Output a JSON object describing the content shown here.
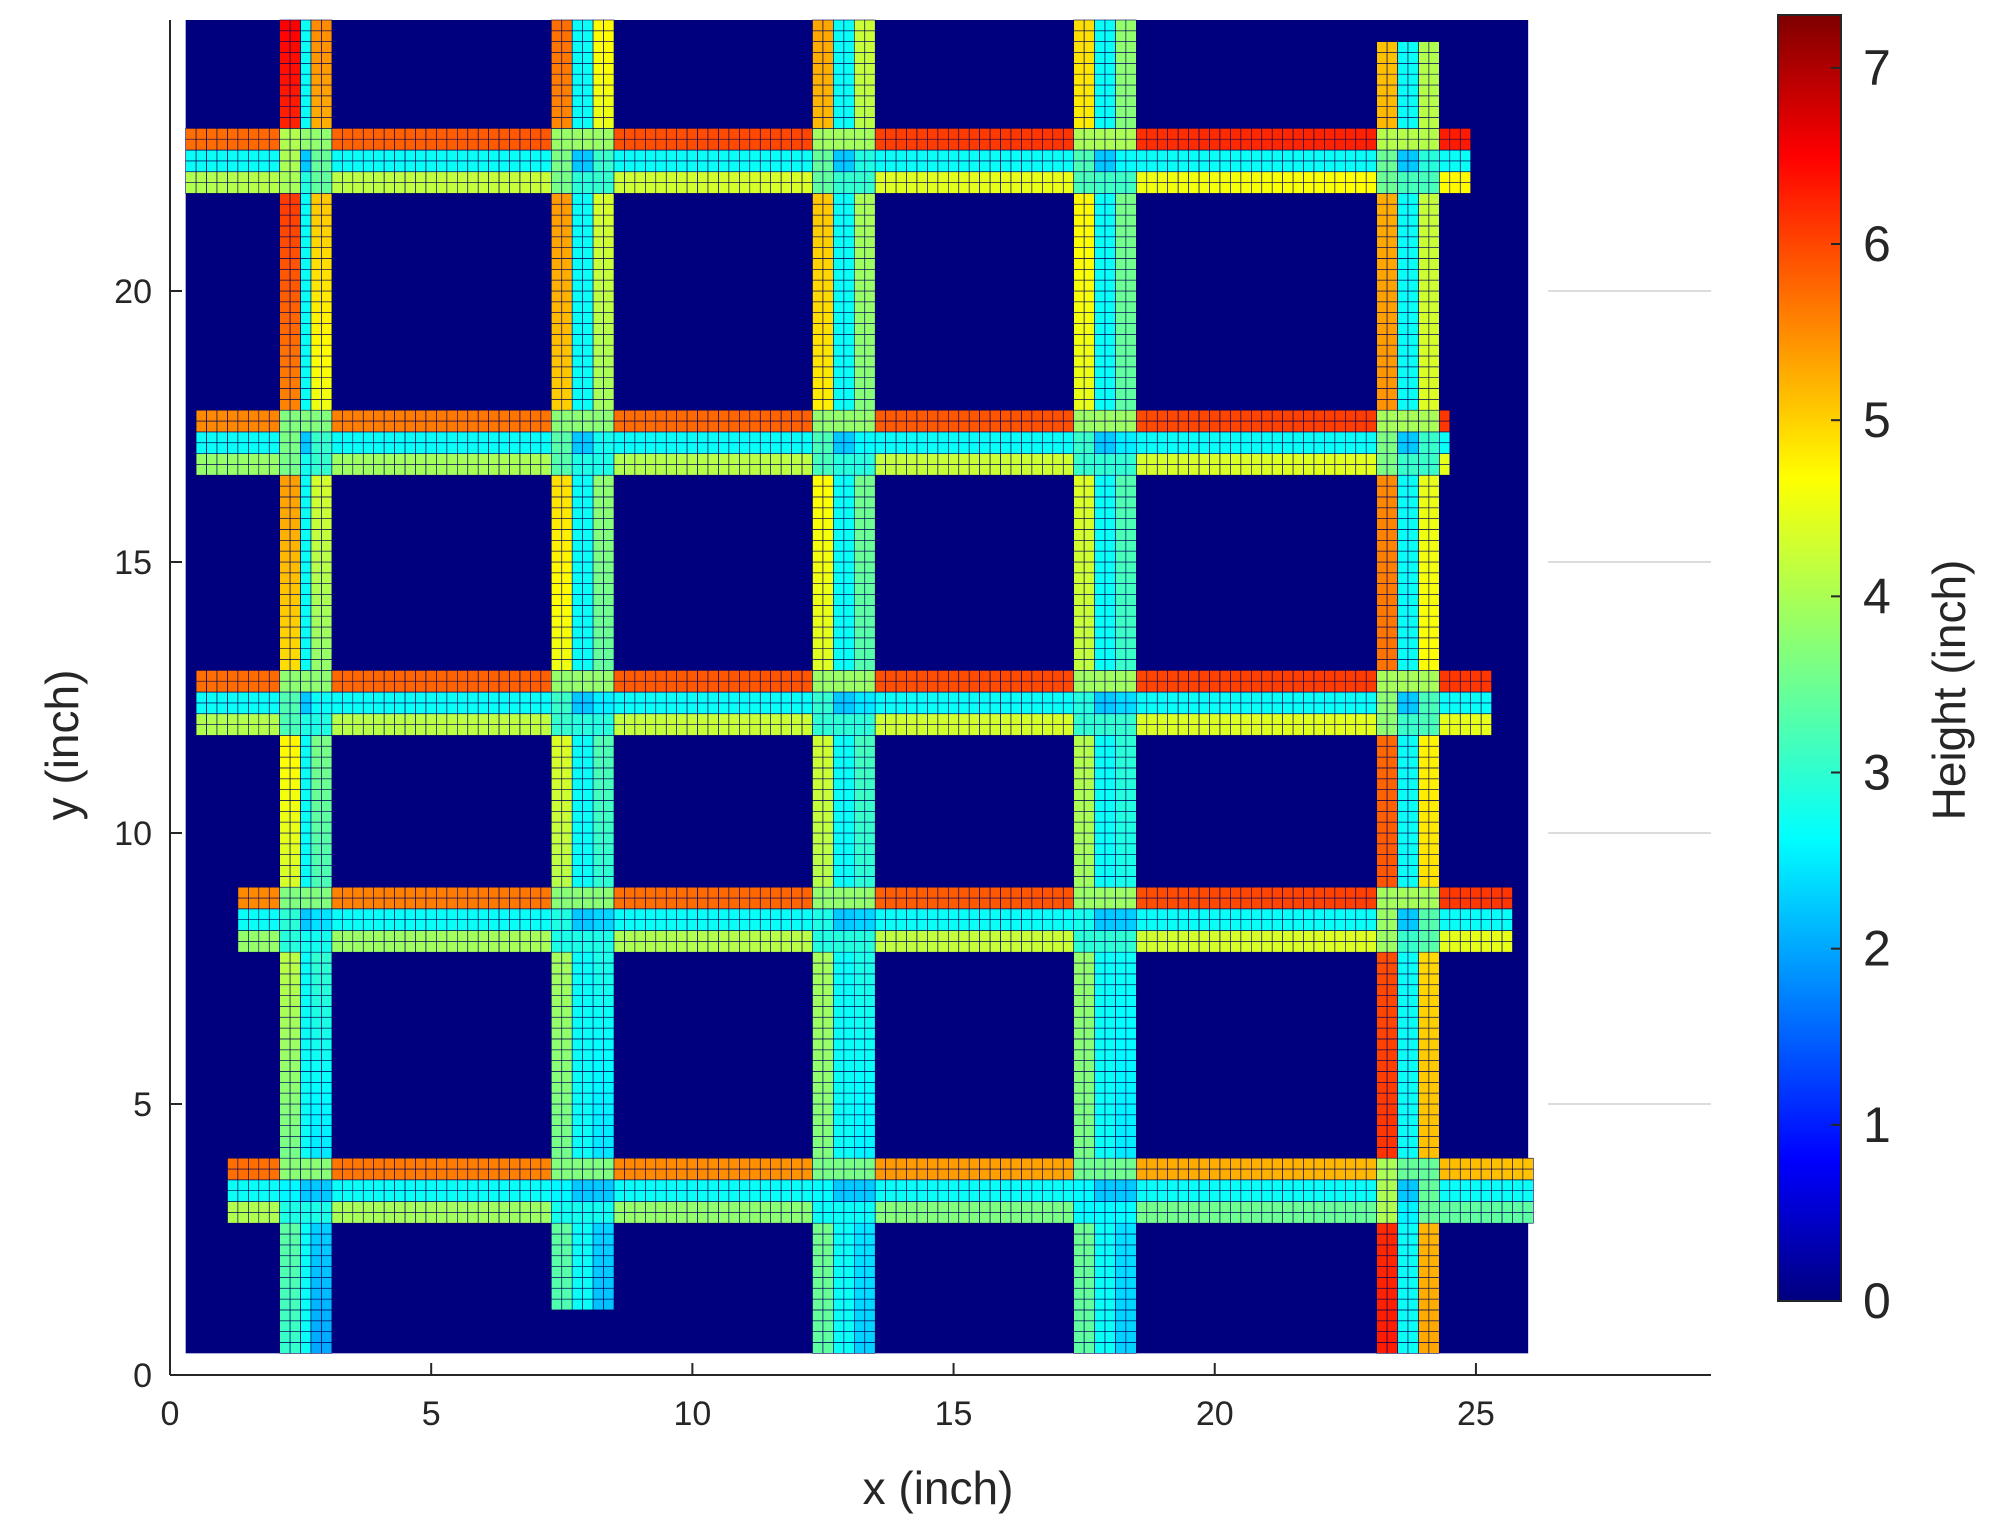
{
  "chart_data": {
    "type": "heatmap",
    "title": "",
    "xlabel": "x (inch)",
    "ylabel": "y (inch)",
    "xlim": [
      0,
      29.5
    ],
    "ylim": [
      0,
      25
    ],
    "xticks": [
      0,
      5,
      10,
      15,
      20,
      25
    ],
    "yticks": [
      0,
      5,
      10,
      15,
      20
    ],
    "data_extent": {
      "x": [
        0.3,
        26.0
      ],
      "y": [
        0.4,
        25.0
      ]
    },
    "grid": false,
    "colorbar": {
      "label": "Height (inch)",
      "range": [
        0,
        7.3
      ],
      "ticks": [
        0,
        1,
        2,
        3,
        4,
        5,
        6,
        7
      ],
      "colormap": "jet"
    },
    "background_value": 0,
    "pixel_size": 0.2,
    "vertical_rebars": [
      {
        "x": 2.6,
        "y_range": [
          0.4,
          25.0
        ],
        "top_height": 5.8,
        "bottom_height": 2.5
      },
      {
        "x": 7.9,
        "y_range": [
          1.3,
          25.0
        ],
        "top_height": 5.0,
        "bottom_height": 2.7
      },
      {
        "x": 12.9,
        "y_range": [
          0.4,
          25.0
        ],
        "top_height": 4.6,
        "bottom_height": 2.8
      },
      {
        "x": 17.9,
        "y_range": [
          0.4,
          25.0
        ],
        "top_height": 4.2,
        "bottom_height": 2.8
      },
      {
        "x": 23.6,
        "y_range": [
          0.4,
          24.5
        ],
        "top_height": 4.4,
        "bottom_height": 5.6
      }
    ],
    "horizontal_rebars": [
      {
        "y": 22.3,
        "x_range": [
          0.3,
          24.8
        ],
        "left_height": 5.2,
        "right_height": 5.8
      },
      {
        "y": 17.2,
        "x_range": [
          0.6,
          24.5
        ],
        "left_height": 5.0,
        "right_height": 5.6
      },
      {
        "y": 12.4,
        "x_range": [
          0.6,
          25.2
        ],
        "left_height": 5.2,
        "right_height": 5.6
      },
      {
        "y": 8.4,
        "x_range": [
          1.3,
          25.6
        ],
        "left_height": 5.0,
        "right_height": 5.6
      },
      {
        "y": 3.4,
        "x_range": [
          1.2,
          26.0
        ],
        "left_height": 5.2,
        "right_height": 4.6
      }
    ],
    "rebar_crossing_height": 1.9,
    "rebar_center_height": 2.8,
    "rebar_edge_height": 6.0
  },
  "colors": {
    "background": "#00007f",
    "cell_border": "#00005a",
    "axis": "#262626",
    "reference_line": "#dcdcdc"
  }
}
